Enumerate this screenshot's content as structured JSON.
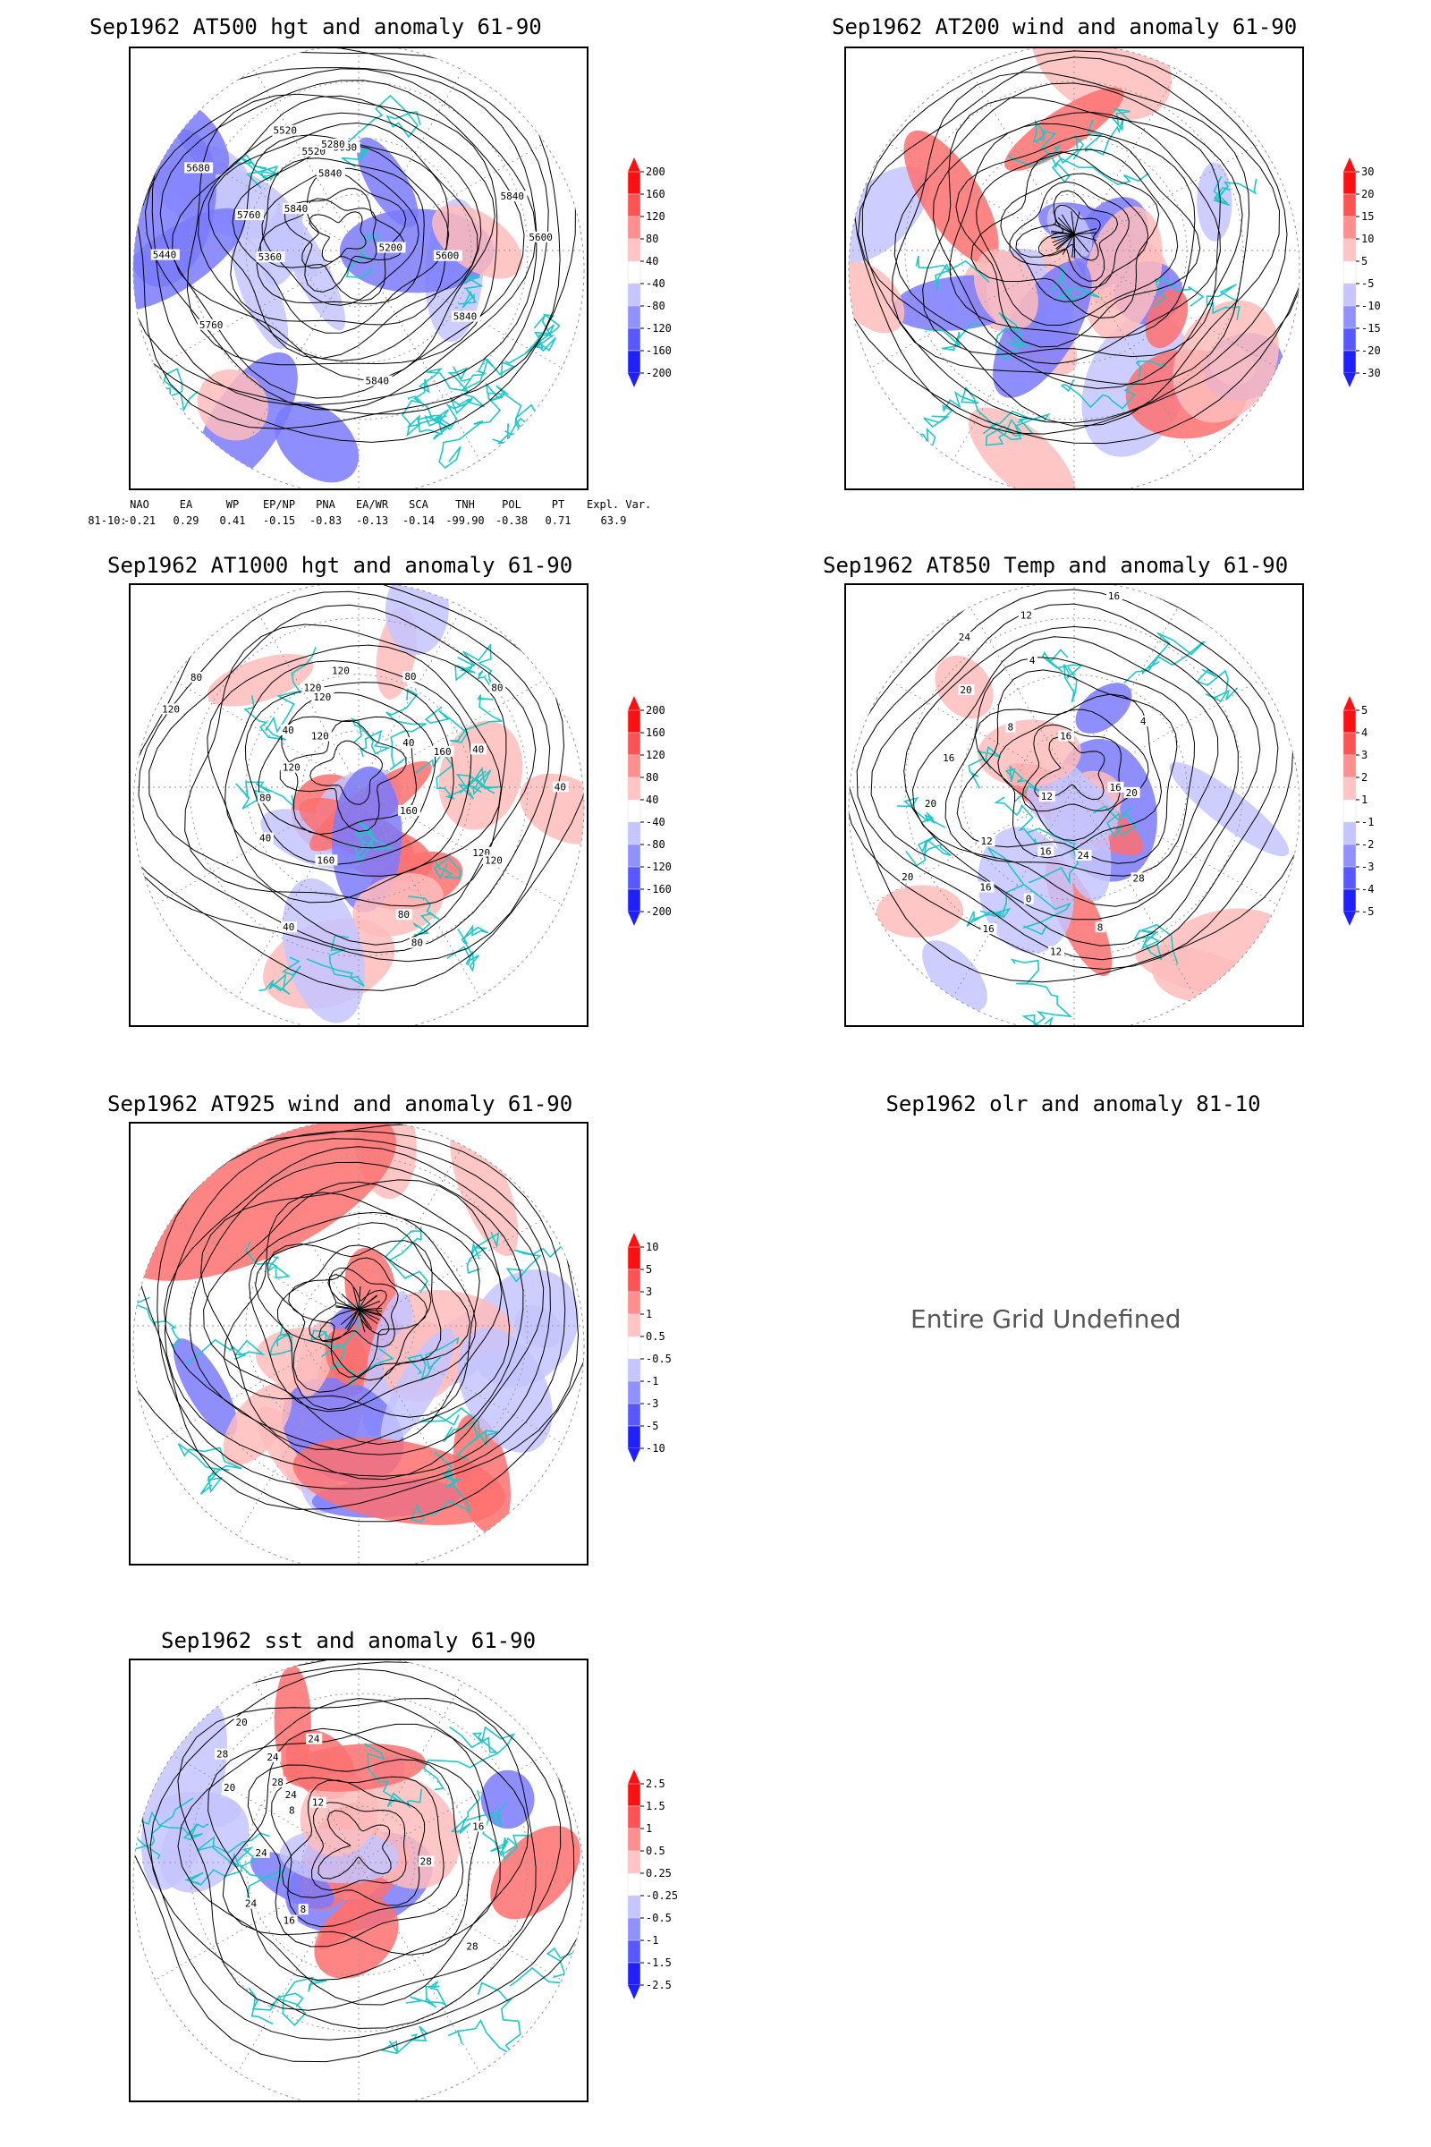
{
  "colors": {
    "coast": "#1fc8c8",
    "contour": "#000000",
    "grid": "#9a9a9a",
    "pos": "#ff0000",
    "neg": "#0000ff"
  },
  "panels": [
    {
      "title": "Sep1962 AT500 hgt and anomaly 61-90",
      "field": "hgt",
      "cbar": [
        "200",
        "160",
        "120",
        "80",
        "40",
        "-40",
        "-80",
        "-120",
        "-160",
        "-200"
      ],
      "contour_labels": [
        "5840",
        "5840",
        "5840",
        "5840",
        "5760",
        "5680",
        "5600",
        "5520",
        "5200",
        "5280",
        "5360",
        "5440",
        "5520",
        "5600",
        "5680",
        "5760",
        "5840"
      ]
    },
    {
      "title": "Sep1962 AT200 wind and anomaly 61-90",
      "field": "wind",
      "cbar": [
        "30",
        "20",
        "15",
        "10",
        "5",
        "-5",
        "-10",
        "-15",
        "-20",
        "-30"
      ],
      "contour_labels": []
    },
    {
      "title": "Sep1962 AT1000 hgt and anomaly 61-90",
      "field": "hgt",
      "cbar": [
        "200",
        "160",
        "120",
        "80",
        "40",
        "-40",
        "-80",
        "-120",
        "-160",
        "-200"
      ],
      "contour_labels": [
        "120",
        "160",
        "160",
        "120",
        "120",
        "80",
        "80",
        "40",
        "160",
        "120",
        "40",
        "80",
        "40",
        "120",
        "80",
        "40",
        "120",
        "120",
        "40",
        "80",
        "40",
        "80",
        "120"
      ]
    },
    {
      "title": "Sep1962 AT850 Temp and anomaly 61-90",
      "field": "temp",
      "cbar": [
        "5",
        "4",
        "3",
        "2",
        "1",
        "-1",
        "-2",
        "-3",
        "-4",
        "-5"
      ],
      "contour_labels": [
        "16",
        "16",
        "12",
        "16",
        "20",
        "12",
        "8",
        "4",
        "0",
        "24",
        "20",
        "16",
        "16",
        "12",
        "4",
        "8",
        "12",
        "20",
        "24",
        "28",
        "20",
        "16",
        "16"
      ]
    },
    {
      "title": "Sep1962 AT925 wind and anomaly 61-90",
      "field": "wind",
      "cbar": [
        "10",
        "5",
        "3",
        "1",
        "0.5",
        "-0.5",
        "-1",
        "-3",
        "-5",
        "-10"
      ],
      "contour_labels": []
    },
    {
      "title": "Sep1962 olr and anomaly 81-10",
      "field": "undefined",
      "message": "Entire Grid Undefined"
    },
    {
      "title": "Sep1962 sst and anomaly 61-90",
      "field": "sst",
      "cbar": [
        "2.5",
        "1.5",
        "1",
        "0.5",
        "0.25",
        "-0.25",
        "-0.5",
        "-1",
        "-1.5",
        "-2.5"
      ],
      "contour_labels": [
        "28",
        "24",
        "24",
        "28",
        "20",
        "16",
        "12",
        "8",
        "24",
        "16",
        "12",
        "8",
        "20",
        "24",
        "28",
        "24",
        "28"
      ]
    }
  ],
  "indices": {
    "headers": [
      "NAO",
      "EA",
      "WP",
      "EP/NP",
      "PNA",
      "EA/WR",
      "SCA",
      "TNH",
      "POL",
      "PT",
      "Expl. Var."
    ],
    "row_label": "81-10:",
    "values": [
      "-0.21",
      "0.29",
      "0.41",
      "-0.15",
      "-0.83",
      "-0.13",
      "-0.14",
      "-99.90",
      "-0.38",
      "0.71",
      "63.9"
    ]
  }
}
